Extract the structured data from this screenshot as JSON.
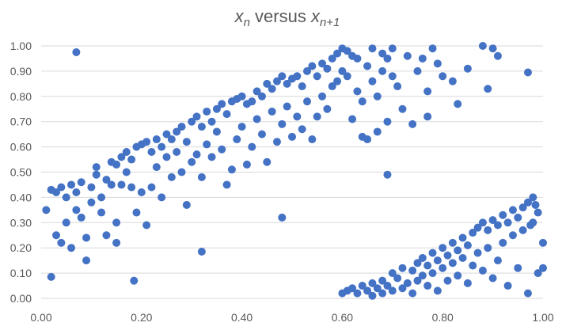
{
  "chart_data": {
    "type": "scatter",
    "title": {
      "var": "x",
      "sub": "n",
      "middle": " versus ",
      "var2": "x",
      "sub2": "n+1"
    },
    "xlabel": "",
    "ylabel": "",
    "xlim": [
      0,
      1
    ],
    "ylim": [
      0,
      1
    ],
    "x_ticks": [
      "0.00",
      "0.20",
      "0.40",
      "0.60",
      "0.80",
      "1.00"
    ],
    "y_ticks": [
      "0.00",
      "0.10",
      "0.20",
      "0.30",
      "0.40",
      "0.50",
      "0.60",
      "0.70",
      "0.80",
      "0.90",
      "1.00"
    ],
    "grid": "horizontal",
    "legend": "none",
    "marker_color": "#4472c4",
    "points": [
      [
        0.07,
        0.975
      ],
      [
        0.02,
        0.085
      ],
      [
        0.185,
        0.07
      ],
      [
        0.32,
        0.185
      ],
      [
        0.48,
        0.32
      ],
      [
        0.69,
        0.49
      ],
      [
        0.01,
        0.35
      ],
      [
        0.02,
        0.43
      ],
      [
        0.03,
        0.42
      ],
      [
        0.03,
        0.25
      ],
      [
        0.04,
        0.44
      ],
      [
        0.04,
        0.22
      ],
      [
        0.05,
        0.4
      ],
      [
        0.05,
        0.3
      ],
      [
        0.06,
        0.45
      ],
      [
        0.06,
        0.2
      ],
      [
        0.07,
        0.42
      ],
      [
        0.07,
        0.35
      ],
      [
        0.08,
        0.46
      ],
      [
        0.08,
        0.32
      ],
      [
        0.09,
        0.15
      ],
      [
        0.09,
        0.24
      ],
      [
        0.1,
        0.44
      ],
      [
        0.1,
        0.38
      ],
      [
        0.11,
        0.49
      ],
      [
        0.11,
        0.52
      ],
      [
        0.12,
        0.34
      ],
      [
        0.12,
        0.4
      ],
      [
        0.13,
        0.25
      ],
      [
        0.13,
        0.47
      ],
      [
        0.14,
        0.45
      ],
      [
        0.14,
        0.54
      ],
      [
        0.15,
        0.53
      ],
      [
        0.15,
        0.3
      ],
      [
        0.15,
        0.22
      ],
      [
        0.16,
        0.56
      ],
      [
        0.16,
        0.45
      ],
      [
        0.17,
        0.58
      ],
      [
        0.17,
        0.5
      ],
      [
        0.18,
        0.55
      ],
      [
        0.18,
        0.44
      ],
      [
        0.19,
        0.6
      ],
      [
        0.19,
        0.34
      ],
      [
        0.2,
        0.61
      ],
      [
        0.2,
        0.42
      ],
      [
        0.21,
        0.62
      ],
      [
        0.21,
        0.29
      ],
      [
        0.22,
        0.58
      ],
      [
        0.22,
        0.44
      ],
      [
        0.23,
        0.63
      ],
      [
        0.23,
        0.52
      ],
      [
        0.24,
        0.6
      ],
      [
        0.24,
        0.4
      ],
      [
        0.25,
        0.65
      ],
      [
        0.25,
        0.56
      ],
      [
        0.26,
        0.63
      ],
      [
        0.26,
        0.48
      ],
      [
        0.27,
        0.66
      ],
      [
        0.27,
        0.58
      ],
      [
        0.28,
        0.68
      ],
      [
        0.28,
        0.5
      ],
      [
        0.29,
        0.62
      ],
      [
        0.29,
        0.37
      ],
      [
        0.3,
        0.7
      ],
      [
        0.3,
        0.54
      ],
      [
        0.31,
        0.72
      ],
      [
        0.31,
        0.57
      ],
      [
        0.32,
        0.68
      ],
      [
        0.32,
        0.48
      ],
      [
        0.33,
        0.74
      ],
      [
        0.33,
        0.61
      ],
      [
        0.34,
        0.7
      ],
      [
        0.34,
        0.56
      ],
      [
        0.35,
        0.75
      ],
      [
        0.35,
        0.66
      ],
      [
        0.36,
        0.77
      ],
      [
        0.36,
        0.59
      ],
      [
        0.37,
        0.73
      ],
      [
        0.37,
        0.45
      ],
      [
        0.38,
        0.78
      ],
      [
        0.38,
        0.51
      ],
      [
        0.39,
        0.79
      ],
      [
        0.39,
        0.63
      ],
      [
        0.4,
        0.8
      ],
      [
        0.4,
        0.68
      ],
      [
        0.41,
        0.77
      ],
      [
        0.41,
        0.53
      ],
      [
        0.42,
        0.78
      ],
      [
        0.42,
        0.6
      ],
      [
        0.43,
        0.82
      ],
      [
        0.43,
        0.71
      ],
      [
        0.44,
        0.8
      ],
      [
        0.44,
        0.65
      ],
      [
        0.45,
        0.85
      ],
      [
        0.45,
        0.54
      ],
      [
        0.46,
        0.83
      ],
      [
        0.46,
        0.74
      ],
      [
        0.47,
        0.86
      ],
      [
        0.47,
        0.62
      ],
      [
        0.48,
        0.88
      ],
      [
        0.48,
        0.69
      ],
      [
        0.49,
        0.85
      ],
      [
        0.49,
        0.76
      ],
      [
        0.5,
        0.87
      ],
      [
        0.5,
        0.64
      ],
      [
        0.51,
        0.88
      ],
      [
        0.51,
        0.72
      ],
      [
        0.52,
        0.84
      ],
      [
        0.52,
        0.67
      ],
      [
        0.53,
        0.9
      ],
      [
        0.53,
        0.78
      ],
      [
        0.54,
        0.92
      ],
      [
        0.54,
        0.63
      ],
      [
        0.55,
        0.88
      ],
      [
        0.55,
        0.72
      ],
      [
        0.56,
        0.93
      ],
      [
        0.56,
        0.8
      ],
      [
        0.57,
        0.91
      ],
      [
        0.57,
        0.75
      ],
      [
        0.58,
        0.95
      ],
      [
        0.58,
        0.84
      ],
      [
        0.59,
        0.97
      ],
      [
        0.59,
        0.86
      ],
      [
        0.6,
        0.99
      ],
      [
        0.6,
        0.9
      ],
      [
        0.61,
        0.98
      ],
      [
        0.61,
        0.88
      ],
      [
        0.62,
        0.96
      ],
      [
        0.62,
        0.71
      ],
      [
        0.63,
        0.95
      ],
      [
        0.63,
        0.82
      ],
      [
        0.64,
        0.64
      ],
      [
        0.64,
        0.78
      ],
      [
        0.65,
        0.92
      ],
      [
        0.65,
        0.63
      ],
      [
        0.66,
        0.99
      ],
      [
        0.66,
        0.86
      ],
      [
        0.67,
        0.66
      ],
      [
        0.67,
        0.8
      ],
      [
        0.68,
        0.97
      ],
      [
        0.68,
        0.9
      ],
      [
        0.69,
        0.95
      ],
      [
        0.69,
        0.7
      ],
      [
        0.7,
        0.99
      ],
      [
        0.7,
        0.88
      ],
      [
        0.71,
        0.84
      ],
      [
        0.72,
        0.75
      ],
      [
        0.73,
        0.96
      ],
      [
        0.74,
        0.69
      ],
      [
        0.75,
        0.9
      ],
      [
        0.76,
        0.95
      ],
      [
        0.77,
        0.72
      ],
      [
        0.77,
        0.82
      ],
      [
        0.78,
        0.99
      ],
      [
        0.79,
        0.93
      ],
      [
        0.8,
        0.88
      ],
      [
        0.82,
        0.86
      ],
      [
        0.83,
        0.77
      ],
      [
        0.85,
        0.91
      ],
      [
        0.88,
        1.0
      ],
      [
        0.89,
        0.83
      ],
      [
        0.9,
        0.99
      ],
      [
        0.91,
        0.96
      ],
      [
        0.97,
        0.895
      ],
      [
        0.6,
        0.02
      ],
      [
        0.61,
        0.03
      ],
      [
        0.62,
        0.04
      ],
      [
        0.63,
        0.02
      ],
      [
        0.64,
        0.05
      ],
      [
        0.65,
        0.03
      ],
      [
        0.66,
        0.06
      ],
      [
        0.66,
        0.01
      ],
      [
        0.67,
        0.04
      ],
      [
        0.68,
        0.07
      ],
      [
        0.68,
        0.02
      ],
      [
        0.69,
        0.05
      ],
      [
        0.7,
        0.1
      ],
      [
        0.7,
        0.03
      ],
      [
        0.71,
        0.08
      ],
      [
        0.72,
        0.12
      ],
      [
        0.72,
        0.04
      ],
      [
        0.73,
        0.06
      ],
      [
        0.74,
        0.11
      ],
      [
        0.74,
        0.02
      ],
      [
        0.75,
        0.14
      ],
      [
        0.75,
        0.07
      ],
      [
        0.76,
        0.16
      ],
      [
        0.76,
        0.09
      ],
      [
        0.77,
        0.13
      ],
      [
        0.77,
        0.05
      ],
      [
        0.78,
        0.18
      ],
      [
        0.78,
        0.1
      ],
      [
        0.79,
        0.15
      ],
      [
        0.79,
        0.03
      ],
      [
        0.8,
        0.2
      ],
      [
        0.8,
        0.12
      ],
      [
        0.81,
        0.17
      ],
      [
        0.81,
        0.07
      ],
      [
        0.82,
        0.22
      ],
      [
        0.82,
        0.14
      ],
      [
        0.83,
        0.19
      ],
      [
        0.83,
        0.09
      ],
      [
        0.84,
        0.24
      ],
      [
        0.84,
        0.16
      ],
      [
        0.85,
        0.21
      ],
      [
        0.85,
        0.06
      ],
      [
        0.86,
        0.26
      ],
      [
        0.86,
        0.13
      ],
      [
        0.87,
        0.28
      ],
      [
        0.87,
        0.18
      ],
      [
        0.88,
        0.3
      ],
      [
        0.88,
        0.11
      ],
      [
        0.89,
        0.27
      ],
      [
        0.89,
        0.2
      ],
      [
        0.9,
        0.31
      ],
      [
        0.9,
        0.08
      ],
      [
        0.91,
        0.29
      ],
      [
        0.91,
        0.15
      ],
      [
        0.92,
        0.33
      ],
      [
        0.92,
        0.22
      ],
      [
        0.93,
        0.3
      ],
      [
        0.93,
        0.05
      ],
      [
        0.94,
        0.35
      ],
      [
        0.94,
        0.25
      ],
      [
        0.95,
        0.32
      ],
      [
        0.95,
        0.12
      ],
      [
        0.96,
        0.36
      ],
      [
        0.96,
        0.27
      ],
      [
        0.97,
        0.38
      ],
      [
        0.97,
        0.02
      ],
      [
        0.98,
        0.4
      ],
      [
        0.98,
        0.3
      ],
      [
        0.99,
        0.34
      ],
      [
        0.99,
        0.1
      ],
      [
        1.0,
        0.22
      ],
      [
        1.0,
        0.12
      ],
      [
        0.985,
        0.37
      ],
      [
        0.975,
        0.29
      ]
    ]
  }
}
